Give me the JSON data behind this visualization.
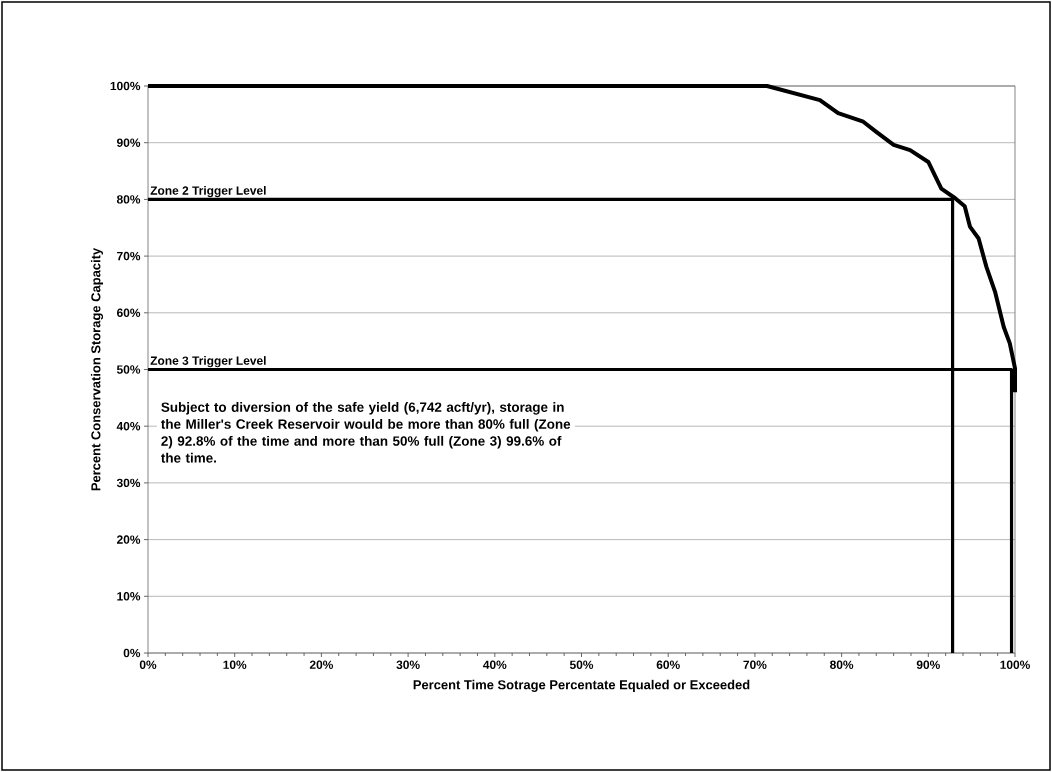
{
  "chart_data": {
    "type": "line",
    "xlabel": "Percent Time Sotrage Percentate Equaled or Exceeded",
    "ylabel": "Percent Conservation Storage Capacity",
    "xlim": [
      0,
      100
    ],
    "ylim": [
      0,
      100
    ],
    "xticks": [
      {
        "value": 0,
        "label": "0%"
      },
      {
        "value": 10,
        "label": "10%"
      },
      {
        "value": 20,
        "label": "20%"
      },
      {
        "value": 30,
        "label": "30%"
      },
      {
        "value": 40,
        "label": "40%"
      },
      {
        "value": 50,
        "label": "50%"
      },
      {
        "value": 60,
        "label": "60%"
      },
      {
        "value": 70,
        "label": "70%"
      },
      {
        "value": 80,
        "label": "80%"
      },
      {
        "value": 90,
        "label": "90%"
      },
      {
        "value": 100,
        "label": "100%"
      }
    ],
    "yticks": [
      {
        "value": 0,
        "label": "0%"
      },
      {
        "value": 10,
        "label": "10%"
      },
      {
        "value": 20,
        "label": "20%"
      },
      {
        "value": 30,
        "label": "30%"
      },
      {
        "value": 40,
        "label": "40%"
      },
      {
        "value": 50,
        "label": "50%"
      },
      {
        "value": 60,
        "label": "60%"
      },
      {
        "value": 70,
        "label": "70%"
      },
      {
        "value": 80,
        "label": "80%"
      },
      {
        "value": 90,
        "label": "90%"
      },
      {
        "value": 100,
        "label": "100%"
      }
    ],
    "grid": "y",
    "series": [
      {
        "color": "#000000",
        "x": [
          0,
          71.4,
          77.5,
          79.6,
          82.5,
          84.0,
          86.0,
          87.9,
          90.0,
          91.5,
          93.1,
          94.2,
          94.8,
          95.8,
          96.7,
          97.7,
          98.7,
          99.4,
          100,
          100
        ],
        "values": [
          100,
          100,
          97.5,
          95.2,
          93.7,
          91.9,
          89.6,
          88.7,
          86.6,
          81.9,
          80.2,
          78.8,
          75.2,
          73.1,
          68.1,
          63.7,
          57.5,
          54.6,
          50.2,
          46
        ]
      },
      {
        "name": "Zone 2 Trigger Level",
        "color": "#000000",
        "x": [
          0,
          92.8,
          92.8
        ],
        "values": [
          80,
          80,
          0
        ]
      },
      {
        "name": "Zone 3 Trigger Level",
        "color": "#000000",
        "x": [
          0,
          99.6,
          99.6
        ],
        "values": [
          50,
          50,
          0
        ]
      }
    ],
    "annotations": [
      "Subject to diversion of the safe yield (6,742 acft/yr), storage in the Miller's Creek Reservoir would be more than 80% full (Zone 2) 92.8% of the time and more than 50% full (Zone 3) 99.6% of the time."
    ]
  }
}
